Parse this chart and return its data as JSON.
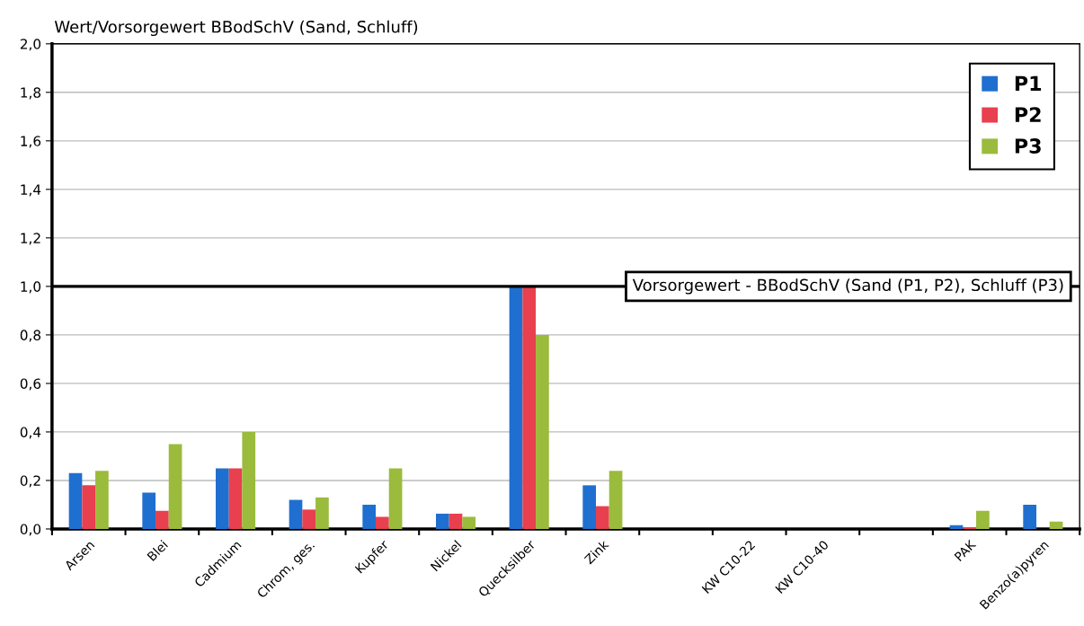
{
  "chart_data": {
    "type": "bar",
    "title": "Wert/Vorsorgewert BBodSchV (Sand, Schluff)",
    "categories": [
      "Arsen",
      "Blei",
      "Cadmium",
      "Chrom, ges.",
      "Kupfer",
      "Nickel",
      "Quecksilber",
      "Zink",
      null,
      "KW C10-22",
      "KW C10-40",
      null,
      "PAK",
      "Benzo(a)pyren"
    ],
    "series": [
      {
        "name": "P1",
        "color": "#1f6fd0",
        "values": [
          0.23,
          0.15,
          0.25,
          0.12,
          0.1,
          0.063,
          1.0,
          0.18,
          null,
          0,
          0,
          null,
          0.016,
          0.1
        ]
      },
      {
        "name": "P2",
        "color": "#e8404f",
        "values": [
          0.18,
          0.075,
          0.25,
          0.08,
          0.05,
          0.063,
          1.0,
          0.094,
          null,
          0,
          0,
          null,
          0.007,
          0
        ]
      },
      {
        "name": "P3",
        "color": "#9bbb3c",
        "values": [
          0.24,
          0.35,
          0.4,
          0.13,
          0.25,
          0.05,
          0.8,
          0.24,
          null,
          0,
          0,
          null,
          0.075,
          0.03
        ]
      }
    ],
    "ylim": [
      0,
      2.0
    ],
    "yticks": [
      {
        "value": 0,
        "label": "0,0"
      },
      {
        "value": 0.2,
        "label": "0,2"
      },
      {
        "value": 0.4,
        "label": "0,4"
      },
      {
        "value": 0.6,
        "label": "0,6"
      },
      {
        "value": 0.8,
        "label": "0,8"
      },
      {
        "value": 1.0,
        "label": "1,0"
      },
      {
        "value": 1.2,
        "label": "1,2"
      },
      {
        "value": 1.4,
        "label": "1,4"
      },
      {
        "value": 1.6,
        "label": "1,6"
      },
      {
        "value": 1.8,
        "label": "1,8"
      },
      {
        "value": 2.0,
        "label": "2,0"
      }
    ],
    "ref_lines": [
      {
        "axis": "y",
        "value": 1.0,
        "label": "Vorsorgewert - BBodSchV (Sand (P1, P2), Schluff (P3)",
        "color": "#000000"
      }
    ],
    "grid": "y",
    "legend": "top right"
  }
}
